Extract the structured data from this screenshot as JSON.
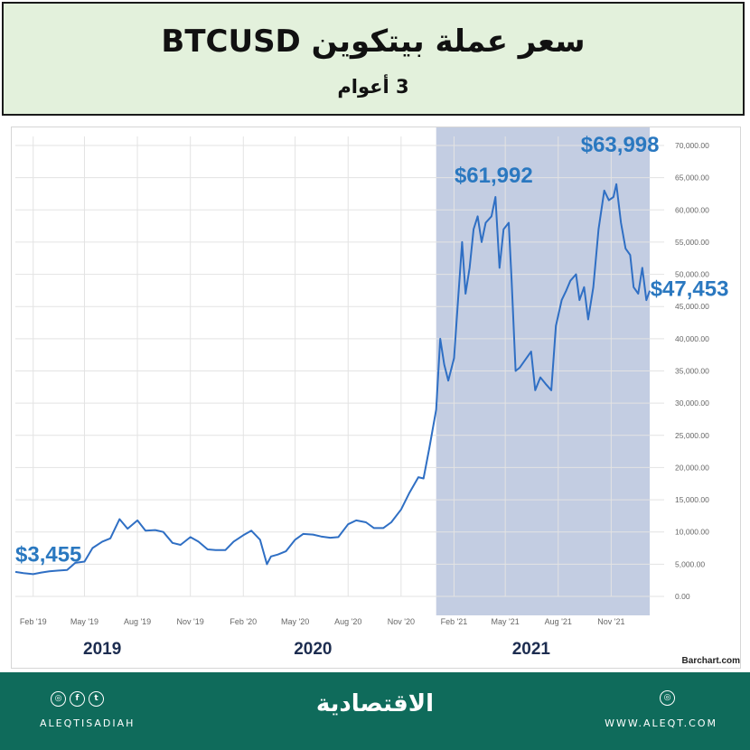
{
  "header": {
    "title": "سعر عملة بيتكوين BTCUSD",
    "subtitle": "3 أعوام"
  },
  "chart_data": {
    "type": "line",
    "source_label": "Barchart.com",
    "colors": {
      "line": "#2f6fc4",
      "highlight": "#c3cde2",
      "label": "#2a78c0",
      "grid": "#e3e3e3"
    },
    "ylim": [
      0,
      70000
    ],
    "y_ticks": [
      0,
      5000,
      10000,
      15000,
      20000,
      25000,
      30000,
      35000,
      40000,
      45000,
      50000,
      55000,
      60000,
      65000,
      70000
    ],
    "y_tick_labels": [
      "0.00",
      "5,000.00",
      "10,000.00",
      "15,000.00",
      "20,000.00",
      "25,000.00",
      "30,000.00",
      "35,000.00",
      "40,000.00",
      "45,000.00",
      "50,000.00",
      "55,000.00",
      "60,000.00",
      "65,000.00",
      "70,000.00"
    ],
    "x_range": [
      "2019-01-01",
      "2022-02-01"
    ],
    "x_ticks": [
      "2019-02-01",
      "2019-05-01",
      "2019-08-01",
      "2019-11-01",
      "2020-02-01",
      "2020-05-01",
      "2020-08-01",
      "2020-11-01",
      "2021-02-01",
      "2021-05-01",
      "2021-08-01",
      "2021-11-01"
    ],
    "x_tick_labels": [
      "Feb '19",
      "May '19",
      "Aug '19",
      "Nov '19",
      "Feb '20",
      "May '20",
      "Aug '20",
      "Nov '20",
      "Feb '21",
      "May '21",
      "Aug '21",
      "Nov '21"
    ],
    "year_labels": [
      {
        "text": "2019",
        "date": "2019-06-01"
      },
      {
        "text": "2020",
        "date": "2020-06-01"
      },
      {
        "text": "2021",
        "date": "2021-06-15"
      }
    ],
    "highlight_range": [
      "2021-01-01",
      "2022-01-07"
    ],
    "series": [
      {
        "x": [
          "2019-01-01",
          "2019-01-15",
          "2019-02-01",
          "2019-02-15",
          "2019-03-01",
          "2019-03-15",
          "2019-04-01",
          "2019-04-15",
          "2019-05-01",
          "2019-05-15",
          "2019-06-01",
          "2019-06-15",
          "2019-07-01",
          "2019-07-15",
          "2019-08-01",
          "2019-08-15",
          "2019-09-01",
          "2019-09-15",
          "2019-10-01",
          "2019-10-15",
          "2019-11-01",
          "2019-11-15",
          "2019-12-01",
          "2019-12-15",
          "2020-01-01",
          "2020-01-15",
          "2020-02-01",
          "2020-02-15",
          "2020-03-01",
          "2020-03-13",
          "2020-03-20",
          "2020-04-01",
          "2020-04-15",
          "2020-05-01",
          "2020-05-15",
          "2020-06-01",
          "2020-06-15",
          "2020-07-01",
          "2020-07-15",
          "2020-08-01",
          "2020-08-15",
          "2020-09-01",
          "2020-09-15",
          "2020-10-01",
          "2020-10-15",
          "2020-11-01",
          "2020-11-15",
          "2020-12-01",
          "2020-12-10",
          "2020-12-20",
          "2021-01-01",
          "2021-01-08",
          "2021-01-15",
          "2021-01-22",
          "2021-02-01",
          "2021-02-08",
          "2021-02-15",
          "2021-02-21",
          "2021-02-28",
          "2021-03-07",
          "2021-03-14",
          "2021-03-21",
          "2021-03-28",
          "2021-04-07",
          "2021-04-14",
          "2021-04-21",
          "2021-04-28",
          "2021-05-07",
          "2021-05-12",
          "2021-05-19",
          "2021-05-26",
          "2021-06-07",
          "2021-06-15",
          "2021-06-22",
          "2021-07-01",
          "2021-07-10",
          "2021-07-20",
          "2021-07-28",
          "2021-08-07",
          "2021-08-15",
          "2021-08-22",
          "2021-09-01",
          "2021-09-07",
          "2021-09-15",
          "2021-09-22",
          "2021-10-01",
          "2021-10-10",
          "2021-10-20",
          "2021-10-28",
          "2021-11-05",
          "2021-11-10",
          "2021-11-18",
          "2021-11-26",
          "2021-12-04",
          "2021-12-10",
          "2021-12-18",
          "2021-12-25",
          "2022-01-01",
          "2022-01-07"
        ],
        "y": [
          3800,
          3600,
          3455,
          3700,
          3900,
          4000,
          4100,
          5200,
          5400,
          7500,
          8500,
          9000,
          12000,
          10500,
          11800,
          10200,
          10300,
          10000,
          8300,
          8000,
          9200,
          8500,
          7300,
          7200,
          7200,
          8500,
          9500,
          10200,
          8800,
          5000,
          6200,
          6500,
          7000,
          8800,
          9700,
          9600,
          9300,
          9100,
          9200,
          11200,
          11800,
          11500,
          10600,
          10600,
          11500,
          13500,
          16000,
          18500,
          18300,
          23000,
          29000,
          40000,
          36000,
          33500,
          37000,
          46000,
          55000,
          47000,
          51000,
          57000,
          59000,
          55000,
          58000,
          59000,
          62000,
          51000,
          57000,
          58000,
          49000,
          35000,
          35500,
          37000,
          38000,
          32000,
          34000,
          33000,
          32000,
          42000,
          46000,
          47500,
          49000,
          50000,
          46000,
          48000,
          43000,
          48000,
          57000,
          63000,
          61500,
          62000,
          64000,
          58000,
          54000,
          53000,
          48000,
          47000,
          51000,
          46000,
          47453
        ]
      }
    ],
    "annotations": [
      {
        "text": "$3,455",
        "date": "2019-02-01",
        "value": 3455
      },
      {
        "text": "$61,992",
        "date": "2021-04-14",
        "value": 61992
      },
      {
        "text": "$63,998",
        "date": "2021-11-10",
        "value": 63998
      },
      {
        "text": "$47,453",
        "date": "2022-01-07",
        "value": 47453
      }
    ]
  },
  "footer": {
    "social_icons": [
      "instagram-icon",
      "facebook-icon",
      "twitter-icon"
    ],
    "handle": "ALEQTISADIAH",
    "brand": "الاقتصادية",
    "website": "WWW.ALEQT.COM"
  }
}
